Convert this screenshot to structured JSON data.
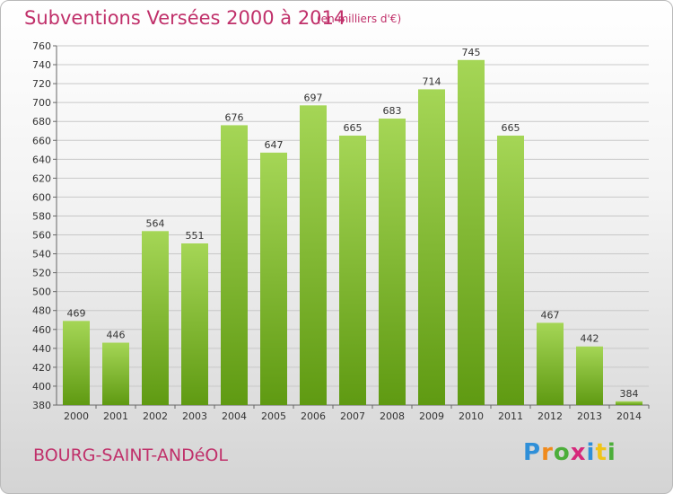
{
  "header": {
    "title": "Subventions Versées 2000 à 2014",
    "subtitle": "(en milliers d'€)"
  },
  "footer": {
    "commune": "BOURG-SAINT-ANDéOL",
    "logo_text": "Proxiti",
    "logo_colors": [
      "#2f8fd8",
      "#f08a1c",
      "#4cae3a",
      "#d6287b",
      "#2f8fd8",
      "#f0c419",
      "#4cae3a"
    ]
  },
  "colors": {
    "bar_top": "#a5d656",
    "bar_bottom": "#5f9a12",
    "title": "#c0306a",
    "grid": "#c8c8c8"
  },
  "chart_data": {
    "type": "bar",
    "title": "Subventions Versées 2000 à 2014",
    "subtitle": "(en milliers d'€)",
    "xlabel": "",
    "ylabel": "",
    "categories": [
      "2000",
      "2001",
      "2002",
      "2003",
      "2004",
      "2005",
      "2006",
      "2007",
      "2008",
      "2009",
      "2010",
      "2011",
      "2012",
      "2013",
      "2014"
    ],
    "values": [
      469,
      446,
      564,
      551,
      676,
      647,
      697,
      665,
      683,
      714,
      745,
      665,
      467,
      442,
      384
    ],
    "ylim": [
      380,
      760
    ],
    "yticks": [
      380,
      400,
      420,
      440,
      460,
      480,
      500,
      520,
      540,
      560,
      580,
      600,
      620,
      640,
      660,
      680,
      700,
      720,
      740,
      760
    ],
    "grid": true,
    "legend": "none"
  }
}
